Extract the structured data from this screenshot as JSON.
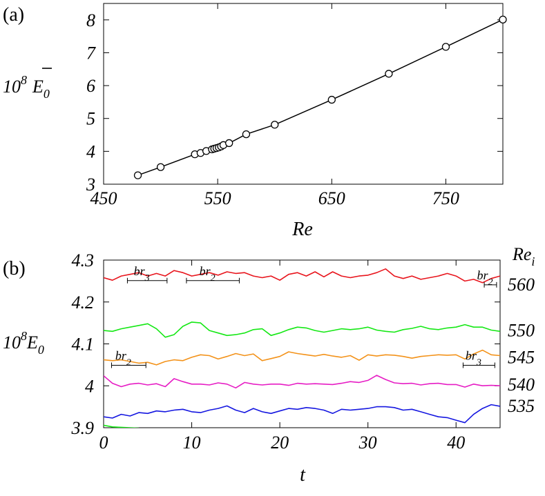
{
  "chart_data": [
    {
      "type": "line",
      "panel_label": "(a)",
      "ylabel": {
        "base": "10",
        "sup": "8",
        "sym": "E",
        "sub": "0"
      },
      "xlabel": "Re",
      "xlim": [
        450,
        800
      ],
      "ylim": [
        3,
        8.5
      ],
      "xticks": [
        "450",
        "550",
        "650",
        "750"
      ],
      "xtick_values": [
        450,
        550,
        650,
        750
      ],
      "yticks": [
        "3",
        "4",
        "5",
        "6",
        "7",
        "8"
      ],
      "ytick_values": [
        3,
        4,
        5,
        6,
        7,
        8
      ],
      "grid": false,
      "series": [
        {
          "x": [
            480,
            500,
            530,
            535,
            540,
            545,
            547,
            549,
            551,
            553,
            555,
            560,
            575,
            600,
            650,
            700,
            750,
            800
          ],
          "y": [
            3.27,
            3.52,
            3.91,
            3.95,
            4.01,
            4.06,
            4.08,
            4.1,
            4.12,
            4.15,
            4.19,
            4.25,
            4.52,
            4.81,
            5.57,
            6.36,
            7.18,
            8.01
          ],
          "color": "#000000",
          "marker": "open-circle"
        }
      ]
    },
    {
      "type": "line",
      "panel_label": "(b)",
      "ylabel": {
        "base": "10",
        "sup": "8",
        "sym": "E",
        "sub": "0"
      },
      "xlabel": "t",
      "xlim": [
        0,
        45
      ],
      "ylim": [
        3.9,
        4.3
      ],
      "xticks": [
        "0",
        "10",
        "20",
        "30",
        "40"
      ],
      "xtick_values": [
        0,
        10,
        20,
        30,
        40
      ],
      "yticks": [
        "3.9",
        "4",
        "4.1",
        "4.2",
        "4.3"
      ],
      "ytick_values": [
        3.9,
        4.0,
        4.1,
        4.2,
        4.3
      ],
      "grid": false,
      "right_label": {
        "base": "Re",
        "sub": "i"
      },
      "series": [
        {
          "name": "560",
          "color": "#e8141c",
          "t": [
            0,
            1,
            2,
            3,
            4,
            5,
            6,
            7,
            8,
            9,
            10,
            11,
            12,
            13,
            14,
            15,
            16,
            17,
            18,
            19,
            20,
            21,
            22,
            23,
            24,
            25,
            26,
            27,
            28,
            29,
            30,
            31,
            32,
            33,
            34,
            35,
            36,
            37,
            38,
            39,
            40,
            41,
            42,
            43,
            44,
            45
          ],
          "y": [
            4.258,
            4.252,
            4.262,
            4.266,
            4.27,
            4.262,
            4.268,
            4.262,
            4.275,
            4.27,
            4.262,
            4.266,
            4.27,
            4.264,
            4.272,
            4.268,
            4.27,
            4.262,
            4.258,
            4.262,
            4.252,
            4.266,
            4.27,
            4.262,
            4.272,
            4.26,
            4.272,
            4.262,
            4.258,
            4.262,
            4.264,
            4.27,
            4.279,
            4.262,
            4.256,
            4.262,
            4.254,
            4.258,
            4.262,
            4.268,
            4.262,
            4.25,
            4.254,
            4.246,
            4.256,
            4.262
          ]
        },
        {
          "name": "550",
          "color": "#14e814",
          "t": [
            0,
            1,
            2,
            3,
            4,
            5,
            6,
            7,
            8,
            9,
            10,
            11,
            12,
            13,
            14,
            15,
            16,
            17,
            18,
            19,
            20,
            21,
            22,
            23,
            24,
            25,
            26,
            27,
            28,
            29,
            30,
            31,
            32,
            33,
            34,
            35,
            36,
            37,
            38,
            39,
            40,
            41,
            42,
            43,
            44,
            45
          ],
          "y": [
            4.132,
            4.13,
            4.136,
            4.14,
            4.144,
            4.148,
            4.136,
            4.116,
            4.122,
            4.142,
            4.152,
            4.15,
            4.132,
            4.126,
            4.12,
            4.122,
            4.126,
            4.134,
            4.136,
            4.12,
            4.126,
            4.134,
            4.14,
            4.138,
            4.132,
            4.128,
            4.132,
            4.136,
            4.134,
            4.136,
            4.14,
            4.133,
            4.13,
            4.128,
            4.134,
            4.137,
            4.142,
            4.136,
            4.134,
            4.138,
            4.14,
            4.146,
            4.14,
            4.14,
            4.133,
            4.13
          ]
        },
        {
          "name": "545",
          "color": "#f39219",
          "t": [
            0,
            1,
            2,
            3,
            4,
            5,
            6,
            7,
            8,
            9,
            10,
            11,
            12,
            13,
            14,
            15,
            16,
            17,
            18,
            19,
            20,
            21,
            22,
            23,
            24,
            25,
            26,
            27,
            28,
            29,
            30,
            31,
            32,
            33,
            34,
            35,
            36,
            37,
            38,
            39,
            40,
            41,
            42,
            43,
            44,
            45
          ],
          "y": [
            4.062,
            4.06,
            4.062,
            4.058,
            4.054,
            4.056,
            4.05,
            4.058,
            4.062,
            4.06,
            4.068,
            4.074,
            4.072,
            4.064,
            4.07,
            4.077,
            4.072,
            4.076,
            4.06,
            4.065,
            4.07,
            4.081,
            4.077,
            4.074,
            4.071,
            4.075,
            4.071,
            4.068,
            4.072,
            4.061,
            4.074,
            4.071,
            4.074,
            4.073,
            4.07,
            4.066,
            4.07,
            4.072,
            4.074,
            4.073,
            4.074,
            4.064,
            4.076,
            4.085,
            4.074,
            4.072
          ]
        },
        {
          "name": "540",
          "color": "#e61cc4",
          "t": [
            0,
            1,
            2,
            3,
            4,
            5,
            6,
            7,
            8,
            9,
            10,
            11,
            12,
            13,
            14,
            15,
            16,
            17,
            18,
            19,
            20,
            21,
            22,
            23,
            24,
            25,
            26,
            27,
            28,
            29,
            30,
            31,
            32,
            33,
            34,
            35,
            36,
            37,
            38,
            39,
            40,
            41,
            42,
            43,
            44,
            45
          ],
          "y": [
            4.024,
            4.006,
            3.998,
            4.004,
            4.006,
            4.002,
            4.005,
            3.998,
            4.017,
            4.01,
            4.004,
            4.004,
            4.002,
            4.007,
            4.004,
            3.995,
            4.008,
            4.004,
            4.002,
            4.004,
            4.004,
            4.001,
            4.006,
            4.004,
            4.005,
            4.004,
            4.003,
            4.006,
            4.01,
            4.008,
            4.013,
            4.025,
            4.015,
            4.007,
            4.005,
            4.006,
            4.002,
            4.005,
            4.006,
            4.003,
            4.003,
            3.997,
            4.004,
            4.0,
            4.001,
            4.0
          ]
        },
        {
          "name": "535",
          "color": "#1416e0",
          "t": [
            0,
            1,
            2,
            3,
            4,
            5,
            6,
            7,
            8,
            9,
            10,
            11,
            12,
            13,
            14,
            15,
            16,
            17,
            18,
            19,
            20,
            21,
            22,
            23,
            24,
            25,
            26,
            27,
            28,
            29,
            30,
            31,
            32,
            33,
            34,
            35,
            36,
            37,
            38,
            39,
            40,
            41,
            42,
            43,
            44,
            45
          ],
          "y": [
            3.926,
            3.923,
            3.932,
            3.928,
            3.936,
            3.934,
            3.94,
            3.938,
            3.942,
            3.944,
            3.938,
            3.936,
            3.942,
            3.946,
            3.952,
            3.942,
            3.936,
            3.946,
            3.938,
            3.934,
            3.94,
            3.946,
            3.944,
            3.948,
            3.946,
            3.942,
            3.934,
            3.944,
            3.942,
            3.944,
            3.946,
            3.95,
            3.95,
            3.948,
            3.942,
            3.944,
            3.938,
            3.932,
            3.926,
            3.924,
            3.918,
            3.912,
            3.932,
            3.946,
            3.955,
            3.951
          ]
        },
        {
          "name": "",
          "color": "#14e814",
          "t": [
            0,
            1,
            2,
            3,
            4
          ],
          "y": [
            3.906,
            3.902,
            3.901,
            3.9,
            3.899
          ]
        }
      ],
      "series_labels": [
        "560",
        "550",
        "545",
        "540",
        "535"
      ],
      "annotations": [
        {
          "label": "br",
          "sub": "3",
          "t_start": 2.7,
          "t_end": 7.2,
          "y": 4.251
        },
        {
          "label": "br",
          "sub": "2",
          "t_start": 9.4,
          "t_end": 15.4,
          "y": 4.251
        },
        {
          "label": "br",
          "sub": "2",
          "t_start": 43.2,
          "t_end": 44.6,
          "y": 4.241
        },
        {
          "label": "br",
          "sub": "2",
          "t_start": 0.9,
          "t_end": 4.8,
          "y": 4.049
        },
        {
          "label": "br",
          "sub": "3",
          "t_start": 40.8,
          "t_end": 44.4,
          "y": 4.049
        }
      ]
    }
  ]
}
